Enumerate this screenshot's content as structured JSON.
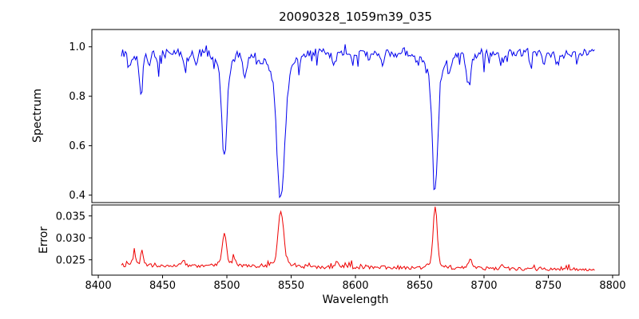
{
  "figure": {
    "title": "20090328_1059m39_035",
    "xlabel": "Wavelength",
    "ylabel_top": "Spectrum",
    "ylabel_bottom": "Error"
  },
  "chart_data": [
    {
      "type": "line",
      "panel": "top",
      "name": "spectrum",
      "color": "#0000ee",
      "x_start": 8418,
      "x_end": 8786,
      "x_step": 1,
      "xlim": [
        8395,
        8805
      ],
      "ylim": [
        0.37,
        1.07
      ],
      "yticks": [
        0.4,
        0.6,
        0.8,
        1.0
      ],
      "ytick_labels": [
        "0.4",
        "0.6",
        "0.8",
        "1.0"
      ],
      "continuum": 0.978,
      "noise_amplitude": 0.016,
      "absorption_lines": [
        {
          "center": 8424,
          "depth": 0.06,
          "width": 1.2
        },
        {
          "center": 8433,
          "depth": 0.13,
          "width": 1.3
        },
        {
          "center": 8440,
          "depth": 0.05,
          "width": 1.0
        },
        {
          "center": 8447,
          "depth": 0.04,
          "width": 1.0
        },
        {
          "center": 8468,
          "depth": 0.06,
          "width": 1.2
        },
        {
          "center": 8476,
          "depth": 0.04,
          "width": 1.0
        },
        {
          "center": 8498,
          "depth": 0.42,
          "width": 2.0
        },
        {
          "center": 8514,
          "depth": 0.09,
          "width": 1.3
        },
        {
          "center": 8527,
          "depth": 0.04,
          "width": 1.0
        },
        {
          "center": 8542,
          "depth": 0.585,
          "width": 3.0
        },
        {
          "center": 8583,
          "depth": 0.05,
          "width": 1.2
        },
        {
          "center": 8598,
          "depth": 0.04,
          "width": 1.0
        },
        {
          "center": 8611,
          "depth": 0.03,
          "width": 1.0
        },
        {
          "center": 8621,
          "depth": 0.04,
          "width": 1.0
        },
        {
          "center": 8648,
          "depth": 0.04,
          "width": 1.0
        },
        {
          "center": 8662,
          "depth": 0.545,
          "width": 2.2
        },
        {
          "center": 8674,
          "depth": 0.05,
          "width": 1.0
        },
        {
          "center": 8688,
          "depth": 0.13,
          "width": 1.6
        },
        {
          "center": 8713,
          "depth": 0.05,
          "width": 1.2
        },
        {
          "center": 8736,
          "depth": 0.04,
          "width": 1.0
        },
        {
          "center": 8747,
          "depth": 0.04,
          "width": 1.0
        },
        {
          "center": 8757,
          "depth": 0.05,
          "width": 1.2
        },
        {
          "center": 8772,
          "depth": 0.04,
          "width": 1.0
        }
      ]
    },
    {
      "type": "line",
      "panel": "bottom",
      "name": "error",
      "color": "#ee0000",
      "x_start": 8418,
      "x_end": 8786,
      "x_step": 1,
      "xlim": [
        8395,
        8805
      ],
      "ylim": [
        0.0215,
        0.0375
      ],
      "yticks": [
        0.025,
        0.03,
        0.035
      ],
      "ytick_labels": [
        "0.025",
        "0.030",
        "0.035"
      ],
      "xticks": [
        8400,
        8450,
        8500,
        8550,
        8600,
        8650,
        8700,
        8750,
        8800
      ],
      "xtick_labels": [
        "8400",
        "8450",
        "8500",
        "8550",
        "8600",
        "8650",
        "8700",
        "8750",
        "8800"
      ],
      "baseline": 0.0238,
      "slope_per_angstrom": 2.8e-06,
      "noise_amplitude": 0.0004,
      "peaks": [
        {
          "center": 8428,
          "height": 0.0028,
          "width": 0.9
        },
        {
          "center": 8434,
          "height": 0.0032,
          "width": 0.9
        },
        {
          "center": 8466,
          "height": 0.0012,
          "width": 0.9
        },
        {
          "center": 8498,
          "height": 0.0068,
          "width": 1.6
        },
        {
          "center": 8506,
          "height": 0.0016,
          "width": 1.2
        },
        {
          "center": 8542,
          "height": 0.0115,
          "width": 2.0
        },
        {
          "center": 8586,
          "height": 0.001,
          "width": 1.5
        },
        {
          "center": 8662,
          "height": 0.0128,
          "width": 1.5
        },
        {
          "center": 8689,
          "height": 0.0018,
          "width": 1.5
        },
        {
          "center": 8714,
          "height": 0.0008,
          "width": 1.2
        }
      ]
    }
  ]
}
